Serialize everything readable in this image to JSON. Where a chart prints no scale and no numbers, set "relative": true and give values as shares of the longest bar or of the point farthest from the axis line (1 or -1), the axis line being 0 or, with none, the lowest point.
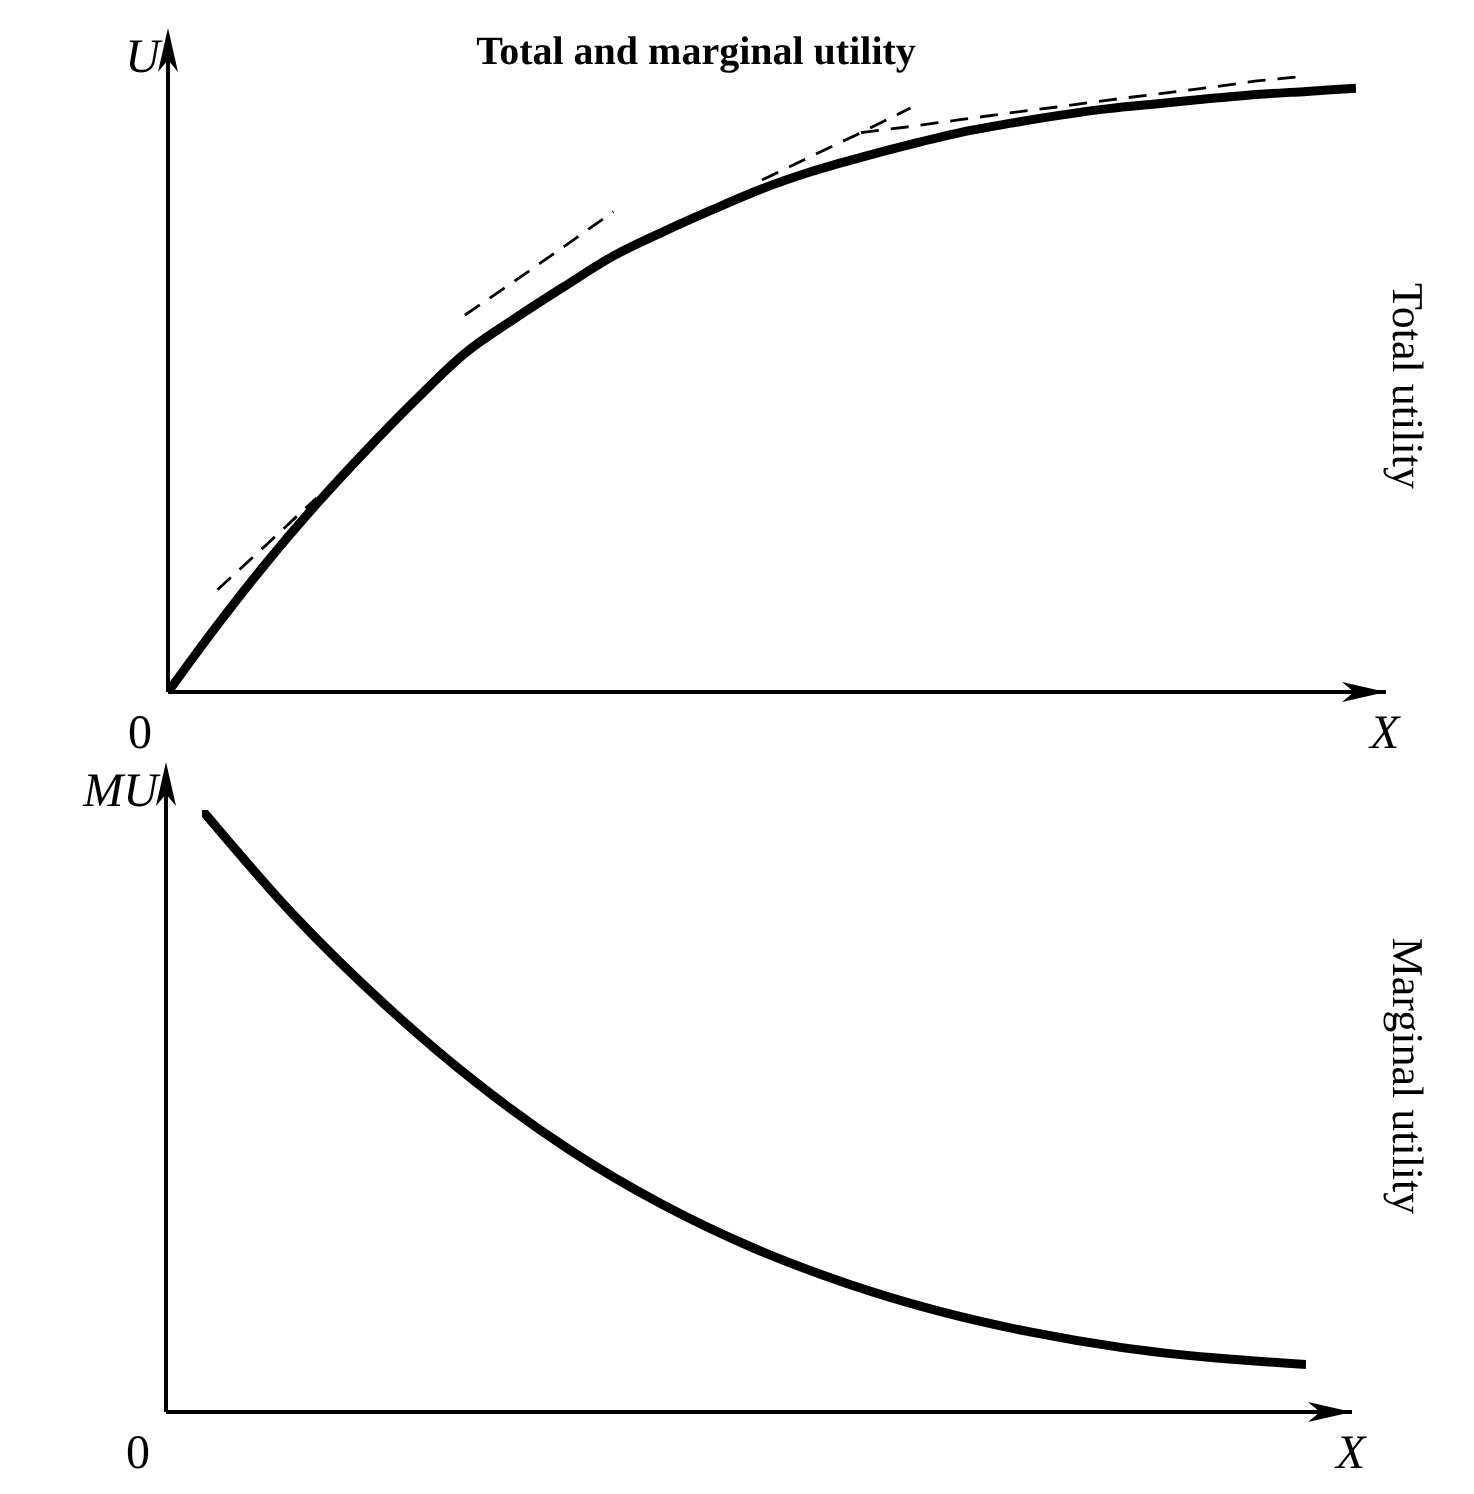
{
  "chart_data": [
    {
      "type": "line",
      "title": "Total and marginal utility",
      "ylabel": "U",
      "xlabel": "X",
      "annotations": [
        "0",
        "Total utility"
      ],
      "relative": true,
      "categories": [
        null,
        null,
        null,
        null,
        null,
        null,
        null,
        null,
        null,
        null,
        null,
        null,
        null,
        null,
        null,
        null,
        null,
        null,
        null,
        null,
        null,
        null,
        null,
        null,
        null
      ],
      "series": [
        {
          "color": "#000000",
          "line_style": "solid",
          "values": [
            0,
            0.109,
            0.211,
            0.305,
            0.392,
            0.474,
            0.55,
            0.606,
            0.658,
            0.708,
            0.747,
            0.783,
            0.817,
            0.845,
            0.868,
            0.889,
            0.908,
            0.923,
            0.936,
            0.947,
            0.955,
            0.963,
            0.97,
            0.975,
            0.98
          ]
        },
        {
          "color": "#000000",
          "line_style": "dashed",
          "values": [
            null,
            0.166,
            0.24,
            0.315,
            null,
            null,
            null,
            null,
            null,
            null,
            null,
            null,
            null,
            null,
            null,
            null,
            null,
            null,
            null,
            null,
            null,
            null,
            null,
            null,
            null
          ]
        },
        {
          "color": "#000000",
          "line_style": "dashed",
          "values": [
            null,
            null,
            null,
            null,
            null,
            null,
            0.612,
            0.667,
            0.723,
            0.78,
            null,
            null,
            null,
            null,
            null,
            null,
            null,
            null,
            null,
            null,
            null,
            null,
            null,
            null,
            null
          ]
        },
        {
          "color": "#000000",
          "line_style": "dashed",
          "values": [
            null,
            null,
            null,
            null,
            null,
            null,
            null,
            null,
            null,
            null,
            null,
            null,
            0.831,
            0.87,
            0.908,
            0.948,
            null,
            null,
            null,
            null,
            null,
            null,
            null,
            null,
            null
          ]
        },
        {
          "color": "#000000",
          "line_style": "dashed",
          "values": [
            null,
            null,
            null,
            null,
            null,
            null,
            null,
            null,
            null,
            null,
            null,
            null,
            null,
            null,
            0.908,
            0.918,
            0.929,
            0.94,
            0.95,
            0.961,
            0.971,
            0.981,
            0.992,
            1.0,
            null
          ]
        }
      ]
    },
    {
      "type": "line",
      "ylabel": "MU",
      "xlabel": "X",
      "annotations": [
        "0",
        "Marginal utility"
      ],
      "relative": true,
      "categories": [
        null,
        null,
        null,
        null,
        null,
        null,
        null,
        null,
        null,
        null,
        null,
        null,
        null
      ],
      "series": [
        {
          "color": "#000000",
          "line_style": "solid",
          "values": [
            1,
            0.825,
            0.675,
            0.545,
            0.435,
            0.345,
            0.272,
            0.214,
            0.168,
            0.133,
            0.107,
            0.09,
            0.079
          ]
        }
      ]
    }
  ]
}
